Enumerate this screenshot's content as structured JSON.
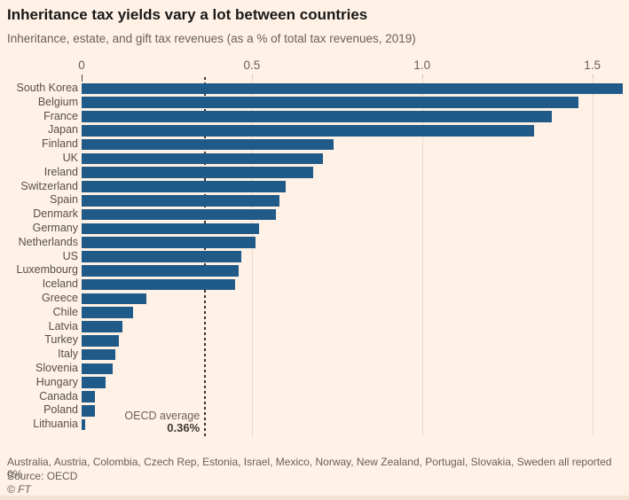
{
  "page": {
    "title": "Inheritance tax yields vary a lot between countries",
    "subtitle": "Inheritance, estate, and gift tax revenues (as a % of total tax revenues, 2019)",
    "footnote": "Australia, Austria, Colombia, Czech Rep, Estonia, Israel, Mexico, Norway, New Zealand, Portugal, Slovakia, Sweden all reported 0%",
    "source": "Source: OECD",
    "copyright": "© FT"
  },
  "colors": {
    "background": "#FFF1E5",
    "bar": "#1F5A89",
    "gridline": "#E8DACB",
    "muted_text": "#66605C",
    "label_text": "#55504B",
    "annotation_line": "#38342F"
  },
  "chart_data": {
    "type": "bar",
    "orientation": "horizontal",
    "title": "Inheritance tax yields vary a lot between countries",
    "subtitle": "Inheritance, estate, and gift tax revenues (as a % of total tax revenues, 2019)",
    "xlabel": "",
    "ylabel": "",
    "grid": true,
    "xlim": [
      0,
      1.6
    ],
    "xticks": [
      0,
      0.5,
      1.0,
      1.5
    ],
    "xtick_labels": [
      "0",
      "0.5",
      "1.0",
      "1.5"
    ],
    "categories": [
      "South Korea",
      "Belgium",
      "France",
      "Japan",
      "Finland",
      "UK",
      "Ireland",
      "Switzerland",
      "Spain",
      "Denmark",
      "Germany",
      "Netherlands",
      "US",
      "Luxembourg",
      "Iceland",
      "Greece",
      "Chile",
      "Latvia",
      "Turkey",
      "Italy",
      "Slovenia",
      "Hungary",
      "Canada",
      "Poland",
      "Lithuania"
    ],
    "values": [
      1.59,
      1.46,
      1.38,
      1.33,
      0.74,
      0.71,
      0.68,
      0.6,
      0.58,
      0.57,
      0.52,
      0.51,
      0.47,
      0.46,
      0.45,
      0.19,
      0.15,
      0.12,
      0.11,
      0.1,
      0.09,
      0.07,
      0.04,
      0.04,
      0.01
    ],
    "annotation": {
      "label": "OECD average",
      "value_label": "0.36%",
      "value": 0.36
    }
  }
}
